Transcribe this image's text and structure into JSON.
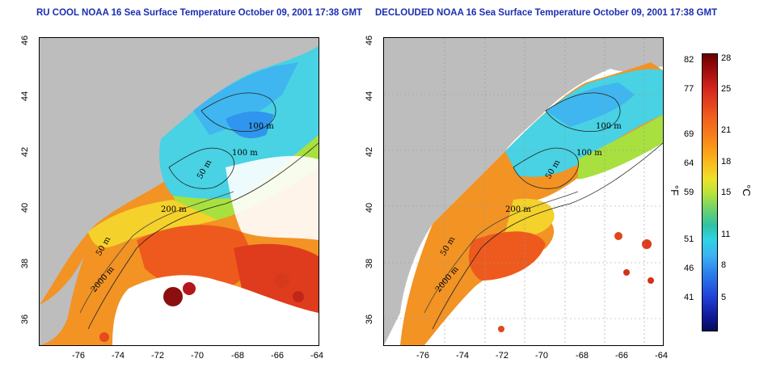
{
  "titles": {
    "left": "RU COOL NOAA 16 Sea Surface Temperature October 09, 2001 17:38 GMT",
    "right": "DECLOUDED NOAA 16 Sea Surface Temperature October 09, 2001 17:38 GMT"
  },
  "axes": {
    "x_ticks": [
      "-76",
      "-74",
      "-72",
      "-70",
      "-68",
      "-66",
      "-64"
    ],
    "y_ticks": [
      "46",
      "44",
      "42",
      "40",
      "38",
      "36"
    ]
  },
  "contours": {
    "left": [
      "100 m",
      "100 m",
      "50 m",
      "200 m",
      "50 m",
      "2000 m"
    ],
    "right": [
      "100 m",
      "100 m",
      "50 m",
      "200 m",
      "50 m",
      "2000 m"
    ]
  },
  "colorbar": {
    "fahrenheit_ticks": [
      "82",
      "77",
      "69",
      "64",
      "59",
      "51",
      "46",
      "41"
    ],
    "celsius_ticks": [
      "28",
      "25",
      "21",
      "18",
      "15",
      "11",
      "8",
      "5"
    ],
    "fahrenheit_unit": "°F",
    "celsius_unit": "°C"
  },
  "colors": {
    "title": "#1b2fb0",
    "land": "#bdbdbd",
    "cloud": "#ffffff"
  }
}
